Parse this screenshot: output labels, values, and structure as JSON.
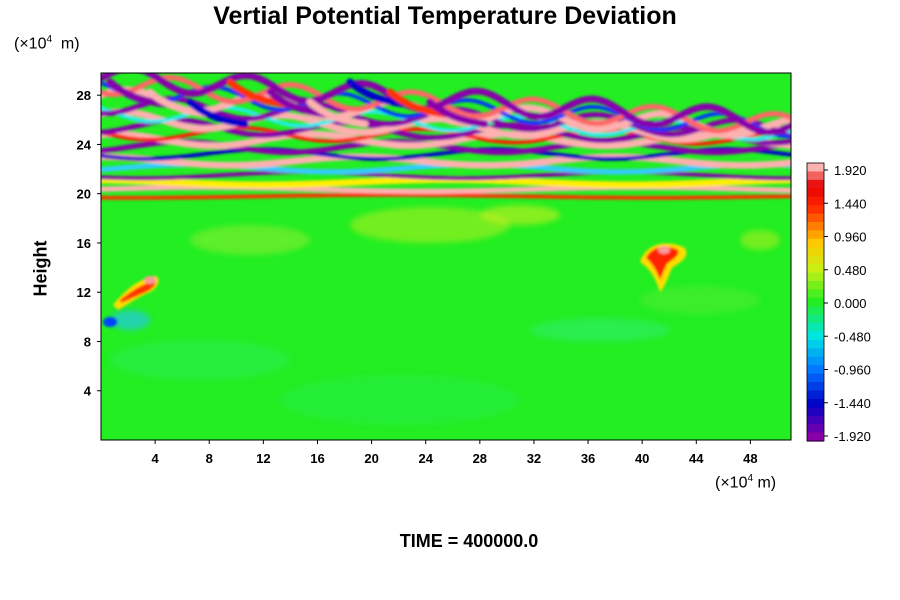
{
  "chart_data": {
    "type": "heatmap",
    "title": "Vertial Potential Temperature Deviation",
    "ylabel": "Height",
    "x_unit": {
      "base": "(×10",
      "exp": "4",
      "unit": " m)"
    },
    "y_unit": {
      "base": "(×10",
      "exp": "4",
      "unit": "  m)"
    },
    "x_ticks": [
      "4",
      "8",
      "12",
      "16",
      "20",
      "24",
      "28",
      "32",
      "36",
      "40",
      "44",
      "48"
    ],
    "y_ticks": [
      "4",
      "8",
      "12",
      "16",
      "20",
      "24",
      "28"
    ],
    "xlim": [
      0,
      51
    ],
    "ylim": [
      0,
      29.8
    ],
    "colorbar": {
      "range": [
        -1.92,
        1.92
      ],
      "levels": 33,
      "tick_labels": [
        "1.920",
        "1.440",
        "0.960",
        "0.480",
        "0.000",
        "-0.480",
        "-0.960",
        "-1.440",
        "-1.920"
      ]
    },
    "colors": {
      "background_field": "#22ee22",
      "positive_peak": "#ffb0b0",
      "negative_peak": "#8800aa"
    },
    "features": [
      {
        "kind": "stratified wave layers (alternating positive/negative)",
        "y_range": [
          19.5,
          29.8
        ]
      },
      {
        "kind": "near-neutral turbulent field",
        "y_range": [
          0,
          19.5
        ]
      },
      {
        "kind": "positive anomaly plume",
        "x": 3.5,
        "y": 12.5
      },
      {
        "kind": "positive anomaly plume",
        "x": 41,
        "y": 15
      }
    ]
  },
  "footer": {
    "time_text": "TIME = 400000.0"
  }
}
